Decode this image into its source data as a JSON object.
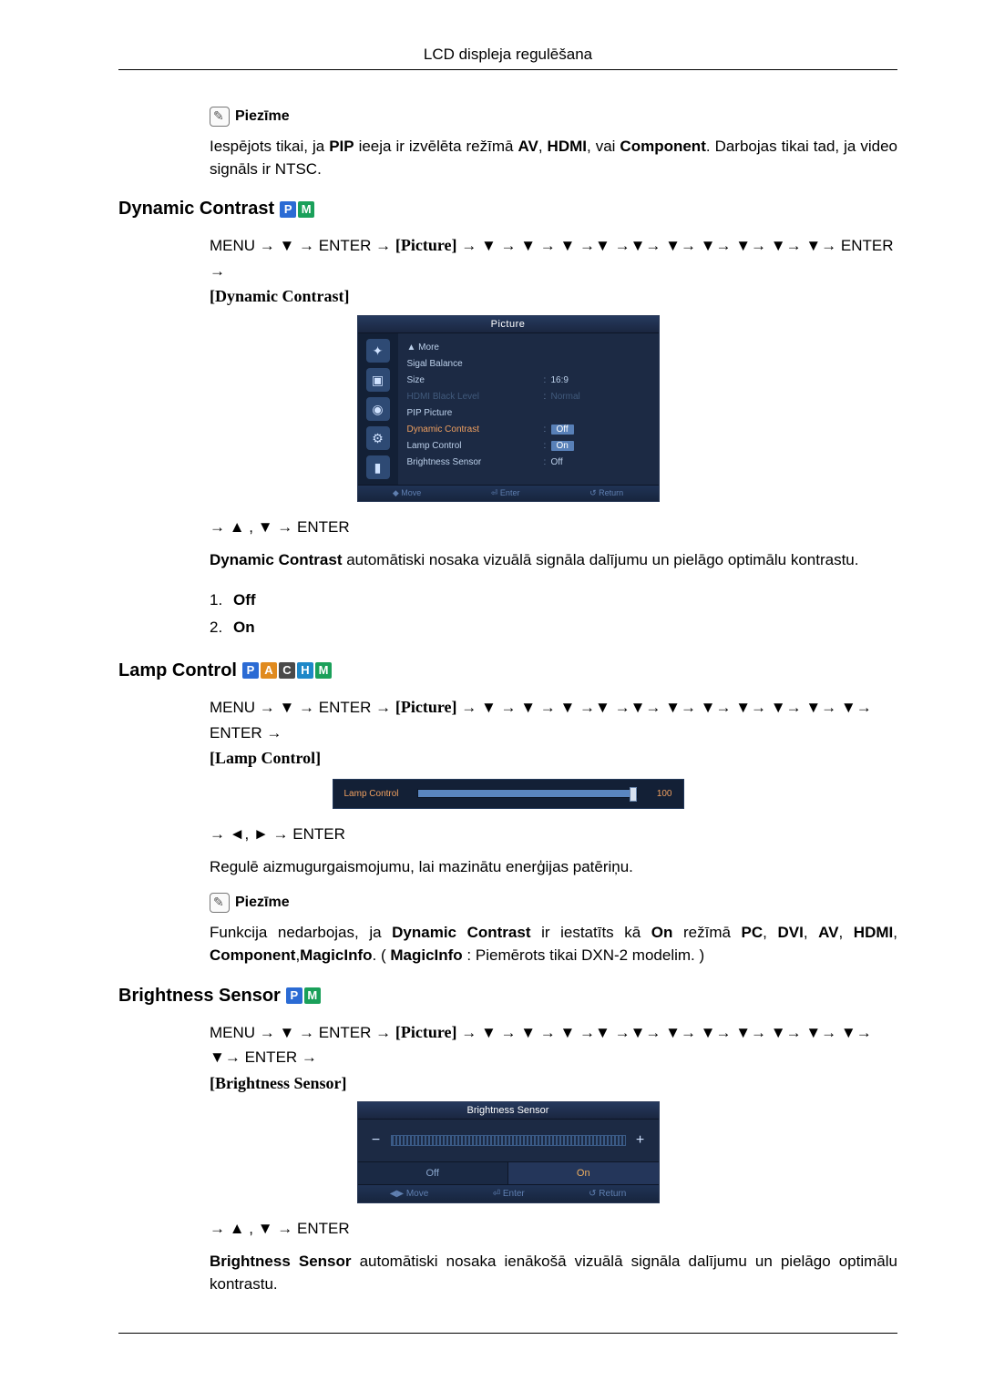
{
  "header": "LCD displeja regulēšana",
  "note_label": "Piezīme",
  "intro_note_html": "Iespējots tikai, ja <b>PIP</b> ieeja ir izvēlēta režīmā <b>AV</b>, <b>HDMI</b>, vai <b>Component</b>. Darbojas tikai tad, ja video signāls ir NTSC.",
  "sections": {
    "dc": {
      "title": "Dynamic Contrast",
      "badges": [
        {
          "t": "P",
          "c": "#2b6bd4"
        },
        {
          "t": "M",
          "c": "#1aa05a"
        }
      ],
      "menu_prefix": "MENU → ",
      "menu_enter": "ENTER",
      "menu_arrows_after_picture": " → ▼ → ▼ → ▼ →▼ →▼→ ▼→ ▼→ ▼→ ▼→ ▼→ ",
      "menu_end": " → ",
      "bracket": "[Dynamic Contrast]",
      "nav": "→ ▲ , ▼ → ENTER",
      "desc_html": "<b>Dynamic Contrast</b> automātiski nosaka vizuālā signāla dalījumu un pielāgo optimālu kontrastu.",
      "list": [
        "Off",
        "On"
      ]
    },
    "lc": {
      "title": "Lamp Control",
      "badges": [
        {
          "t": "P",
          "c": "#2b6bd4"
        },
        {
          "t": "A",
          "c": "#e08a1e"
        },
        {
          "t": "C",
          "c": "#4a4a4a"
        },
        {
          "t": "H",
          "c": "#1e88c8"
        },
        {
          "t": "M",
          "c": "#1aa05a"
        }
      ],
      "menu_arrows_after_picture": " → ▼ → ▼ → ▼ →▼ →▼→ ▼→ ▼→ ▼→ ▼→ ▼→ ▼→ ",
      "bracket": "[Lamp Control]",
      "nav": "→ ◄, ► → ENTER",
      "desc": "Regulē aizmugurgaismojumu, lai mazinātu enerģijas patēriņu.",
      "note_html": "Funkcija nedarbojas, ja <b>Dynamic Contrast</b> ir iestatīts kā <b>On</b> režīmā <b>PC</b>, <b>DVI</b>, <b>AV</b>, <b>HDMI</b>, <b>Component</b>,<b>MagicInfo</b>. ( <b>MagicInfo</b> : Piemērots tikai DXN-2 modelim. )"
    },
    "bs": {
      "title": "Brightness Sensor",
      "badges": [
        {
          "t": "P",
          "c": "#2b6bd4"
        },
        {
          "t": "M",
          "c": "#1aa05a"
        }
      ],
      "menu_arrows_after_picture": " → ▼ → ▼ → ▼ →▼ →▼→ ▼→ ▼→ ▼→ ▼→ ▼→ ▼→ ▼→ ",
      "bracket": "[Brightness Sensor]",
      "nav": "→ ▲ , ▼ → ENTER",
      "desc_html": "<b>Brightness Sensor</b>  automātiski nosaka ienākošā vizuālā signāla dalījumu un pielāgo optimālu kontrastu."
    }
  },
  "osd_picture": {
    "title": "Picture",
    "rows": [
      {
        "label": "▲ More",
        "val": "",
        "cls": ""
      },
      {
        "label": "Sigal Balance",
        "val": "",
        "cls": ""
      },
      {
        "label": "Size",
        "val": "16:9",
        "cls": ""
      },
      {
        "label": "HDMI Black Level",
        "val": "Normal",
        "cls": "muted"
      },
      {
        "label": "PIP Picture",
        "val": "",
        "cls": ""
      },
      {
        "label": "Dynamic Contrast",
        "val": "Off",
        "cls": "hl",
        "box": true
      },
      {
        "label": "Lamp Control",
        "val": "On",
        "cls": "",
        "box": true
      },
      {
        "label": "Brightness Sensor",
        "val": "Off",
        "cls": ""
      }
    ],
    "footer": [
      "◆ Move",
      "⏎ Enter",
      "↺ Return"
    ],
    "sidebar_icons": [
      "✦",
      "▣",
      "◉",
      "⚙",
      "▮"
    ],
    "colors": {
      "bg": "#1c2a44",
      "highlight": "#f0a060",
      "box": "#5880b8"
    }
  },
  "osd_lamp": {
    "label": "Lamp Control",
    "value": 100,
    "max": 100,
    "colors": {
      "bg": "#132036",
      "label": "#f0a060",
      "bar": "#5a86c0"
    }
  },
  "osd_bs": {
    "title": "Brightness Sensor",
    "minus": "−",
    "plus": "+",
    "off": "Off",
    "on": "On",
    "footer": [
      "◀▶ Move",
      "⏎ Enter",
      "↺ Return"
    ]
  },
  "picture_term": "[Picture]"
}
